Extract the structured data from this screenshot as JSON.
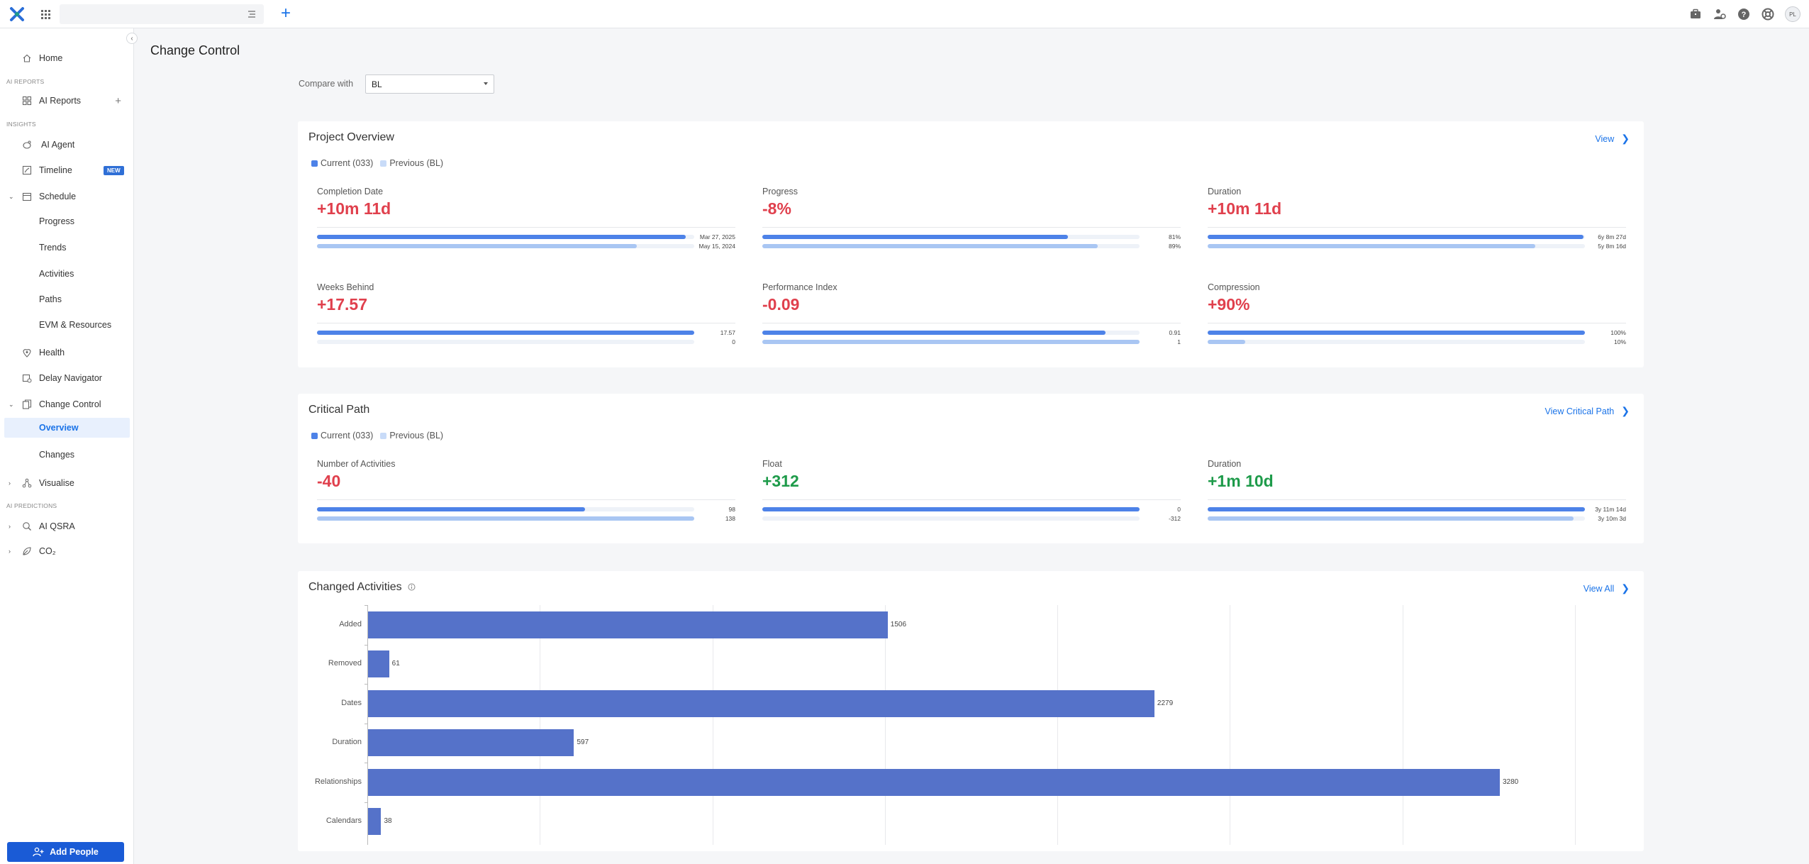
{
  "topbar": {
    "avatar_initials": "PL"
  },
  "sidebar": {
    "home": "Home",
    "section_ai_reports": "AI REPORTS",
    "ai_reports": "AI Reports",
    "section_insights": "INSIGHTS",
    "ai_agent": "AI Agent",
    "timeline": "Timeline",
    "timeline_badge": "NEW",
    "schedule": "Schedule",
    "progress": "Progress",
    "trends": "Trends",
    "activities": "Activities",
    "paths": "Paths",
    "evm": "EVM & Resources",
    "health": "Health",
    "delay_navigator": "Delay Navigator",
    "change_control": "Change Control",
    "overview": "Overview",
    "changes": "Changes",
    "visualise": "Visualise",
    "section_ai_predictions": "AI PREDICTIONS",
    "ai_qsra": "AI QSRA",
    "co2": "CO₂",
    "add_people": "Add People"
  },
  "page": {
    "title": "Change Control",
    "compare_label": "Compare with",
    "compare_value": "BL"
  },
  "project_overview": {
    "title": "Project Overview",
    "link": "View",
    "legend_current": "Current (033)",
    "legend_previous": "Previous (BL)",
    "metrics": [
      {
        "label": "Completion Date",
        "value": "+10m 11d",
        "current_label": "Mar 27, 2025",
        "previous_label": "May 15, 2024",
        "current_frac": 0.977,
        "previous_frac": 0.848
      },
      {
        "label": "Progress",
        "value": "-8%",
        "current_label": "81%",
        "previous_label": "89%",
        "current_frac": 0.81,
        "previous_frac": 0.89
      },
      {
        "label": "Duration",
        "value": "+10m 11d",
        "current_label": "6y 8m 27d",
        "previous_label": "5y 8m 16d",
        "current_frac": 0.997,
        "previous_frac": 0.868
      },
      {
        "label": "Weeks Behind",
        "value": "+17.57",
        "current_label": "17.57",
        "previous_label": "0",
        "current_frac": 1.0,
        "previous_frac": 0.0
      },
      {
        "label": "Performance Index",
        "value": "-0.09",
        "current_label": "0.91",
        "previous_label": "1",
        "current_frac": 0.91,
        "previous_frac": 1.0
      },
      {
        "label": "Compression",
        "value": "+90%",
        "current_label": "100%",
        "previous_label": "10%",
        "current_frac": 1.0,
        "previous_frac": 0.1
      }
    ]
  },
  "critical_path": {
    "title": "Critical Path",
    "link": "View Critical Path",
    "legend_current": "Current (033)",
    "legend_previous": "Previous (BL)",
    "metrics": [
      {
        "label": "Number of Activities",
        "value": "-40",
        "current_label": "98",
        "previous_label": "138",
        "current_frac": 0.71,
        "previous_frac": 1.0
      },
      {
        "label": "Float",
        "value": "+312",
        "current_label": "0",
        "previous_label": "-312",
        "current_frac": 1.0,
        "previous_frac": 0.0
      },
      {
        "label": "Duration",
        "value": "+1m 10d",
        "current_label": "3y 11m 14d",
        "previous_label": "3y 10m 3d",
        "current_frac": 1.0,
        "previous_frac": 0.97
      }
    ]
  },
  "changed_activities": {
    "title": "Changed Activities",
    "link": "View All"
  },
  "chart_data": {
    "type": "bar",
    "orientation": "horizontal",
    "categories": [
      "Added",
      "Removed",
      "Dates",
      "Duration",
      "Relationships",
      "Calendars"
    ],
    "values": [
      1506,
      61,
      2279,
      597,
      3280,
      38
    ],
    "xlim": [
      0,
      3500
    ],
    "grid": true,
    "color": "#5572c9"
  }
}
